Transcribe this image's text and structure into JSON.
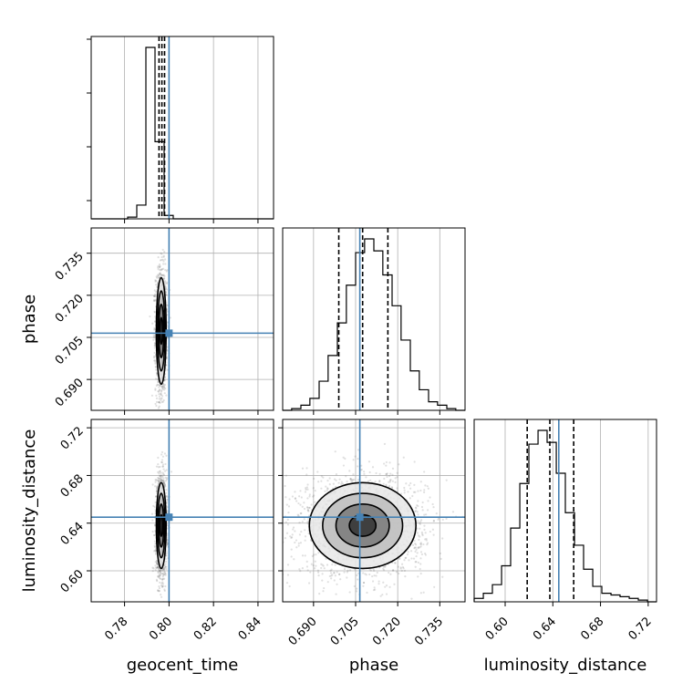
{
  "chart_data": {
    "type": "corner",
    "parameters": [
      "geocent_time",
      "phase",
      "luminosity_distance"
    ],
    "truths": {
      "geocent_time": 0.8,
      "phase": 0.7065,
      "luminosity_distance": 0.645
    },
    "colors": {
      "truth": "#4682b4",
      "hist": "#000000",
      "grid": "#b0b0b0",
      "points": "#555555"
    },
    "grid": true,
    "axes": {
      "geocent_time": {
        "range": [
          0.765,
          0.847
        ],
        "ticks": [
          0.78,
          0.8,
          0.82,
          0.84
        ],
        "tick_labels": [
          "0.78",
          "0.80",
          "0.82",
          "0.84"
        ]
      },
      "phase": {
        "range": [
          0.679,
          0.744
        ],
        "ticks": [
          0.69,
          0.705,
          0.72,
          0.735
        ],
        "tick_labels": [
          "0.690",
          "0.705",
          "0.720",
          "0.735"
        ]
      },
      "luminosity_distance": {
        "range": [
          0.574,
          0.727
        ],
        "ticks": [
          0.6,
          0.64,
          0.68,
          0.72
        ],
        "tick_labels": [
          "0.60",
          "0.64",
          "0.68",
          "0.72"
        ]
      }
    },
    "marginals": {
      "geocent_time": {
        "bin_edges": [
          0.765,
          0.7691,
          0.7732,
          0.7773,
          0.7814,
          0.7855,
          0.7896,
          0.7937,
          0.7978,
          0.8019,
          0.806,
          0.8101,
          0.8142,
          0.8183,
          0.8224,
          0.8265,
          0.8306,
          0.8347,
          0.8388,
          0.8429,
          0.847
        ],
        "counts": [
          0,
          0,
          0,
          0,
          0.01,
          0.08,
          1.0,
          0.45,
          0.02,
          0,
          0,
          0,
          0,
          0,
          0,
          0,
          0,
          0,
          0,
          0
        ],
        "quantiles": [
          0.7955,
          0.7968,
          0.798
        ]
      },
      "phase": {
        "bin_edges": [
          0.679,
          0.6822,
          0.6855,
          0.6887,
          0.692,
          0.6952,
          0.6985,
          0.7017,
          0.705,
          0.7082,
          0.7115,
          0.7147,
          0.718,
          0.7212,
          0.7245,
          0.7277,
          0.731,
          0.7342,
          0.7375,
          0.7407,
          0.744
        ],
        "counts": [
          0,
          0.01,
          0.03,
          0.07,
          0.17,
          0.32,
          0.51,
          0.73,
          0.92,
          1.0,
          0.93,
          0.79,
          0.61,
          0.41,
          0.23,
          0.12,
          0.05,
          0.03,
          0.01,
          0
        ],
        "quantiles": [
          0.699,
          0.7075,
          0.7165
        ]
      },
      "luminosity_distance": {
        "bin_edges": [
          0.574,
          0.5817,
          0.5893,
          0.597,
          0.6046,
          0.6123,
          0.6199,
          0.6276,
          0.6352,
          0.6429,
          0.6505,
          0.6582,
          0.6658,
          0.6735,
          0.6811,
          0.6888,
          0.6964,
          0.7041,
          0.7117,
          0.7194,
          0.727
        ],
        "counts": [
          0.02,
          0.05,
          0.1,
          0.21,
          0.43,
          0.69,
          0.92,
          1.0,
          0.93,
          0.75,
          0.52,
          0.33,
          0.19,
          0.09,
          0.05,
          0.04,
          0.03,
          0.02,
          0.01,
          0
        ],
        "quantiles": [
          0.6185,
          0.6375,
          0.6575
        ]
      }
    },
    "joints": [
      {
        "x": "geocent_time",
        "y": "phase",
        "center": [
          0.7965,
          0.7073
        ],
        "sd": [
          0.0011,
          0.0095
        ],
        "n_points": 1500
      },
      {
        "x": "geocent_time",
        "y": "luminosity_distance",
        "center": [
          0.7965,
          0.638
        ],
        "sd": [
          0.0011,
          0.018
        ],
        "n_points": 1500
      },
      {
        "x": "phase",
        "y": "luminosity_distance",
        "center": [
          0.7075,
          0.638
        ],
        "sd": [
          0.0095,
          0.018
        ],
        "n_points": 2200
      }
    ],
    "contour_levels_sigma": [
      0.5,
      1.0,
      1.5,
      2.0
    ],
    "title": ""
  }
}
